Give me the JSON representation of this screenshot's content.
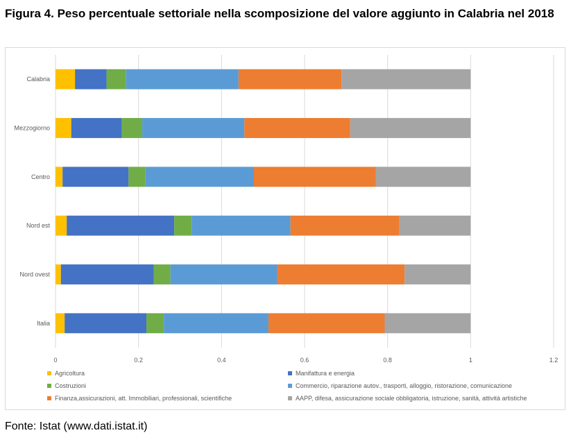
{
  "figure_title": "Figura 4. Peso percentuale settoriale nella scomposizione del valore aggiunto in Calabria nel 2018",
  "source_note": "Fonte: Istat (www.dati.istat.it)",
  "colors": {
    "Agricoltura": "#ffc000",
    "Manifattura e energia": "#4472c4",
    "Costruzioni": "#70ad47",
    "Commercio": "#5b9bd5",
    "Finanza": "#ed7d31",
    "AAPP": "#a5a5a5",
    "gridline": "#d9d9d9"
  },
  "chart_data": {
    "type": "bar",
    "orientation": "horizontal",
    "stacked": true,
    "title": "",
    "xlabel": "",
    "ylabel": "",
    "xlim": [
      0,
      1.2
    ],
    "x_ticks": [
      0,
      0.2,
      0.4,
      0.6,
      0.8,
      1,
      1.2
    ],
    "x_tick_labels": [
      "0",
      "0.2",
      "0.4",
      "0.6",
      "0.8",
      "1",
      "1.2"
    ],
    "grid": "vertical",
    "legend_position": "bottom",
    "categories": [
      "Calabria",
      "Mezzogiorno",
      "Centro",
      "Nord est",
      "Nord ovest",
      "Italia"
    ],
    "series": [
      {
        "name": "Agricoltura",
        "values": [
          0.047,
          0.038,
          0.017,
          0.027,
          0.013,
          0.022
        ]
      },
      {
        "name": "Manifattura e energia",
        "values": [
          0.076,
          0.122,
          0.159,
          0.259,
          0.224,
          0.197
        ]
      },
      {
        "name": "Costruzioni",
        "values": [
          0.047,
          0.049,
          0.041,
          0.042,
          0.04,
          0.042
        ]
      },
      {
        "name": "Commercio, riparazione autov., trasporti, alloggio, ristorazione, comunicazione",
        "values": [
          0.271,
          0.246,
          0.261,
          0.238,
          0.257,
          0.252
        ]
      },
      {
        "name": "Finanza,assicurazioni, att. Immobiliari, professionali, scientifiche",
        "values": [
          0.248,
          0.255,
          0.294,
          0.262,
          0.307,
          0.28
        ]
      },
      {
        "name": "AAPP, difesa, assicurazione sociale obbligatoria, istruzione, sanità, attività artistiche",
        "values": [
          0.311,
          0.29,
          0.228,
          0.172,
          0.159,
          0.207
        ]
      }
    ]
  }
}
